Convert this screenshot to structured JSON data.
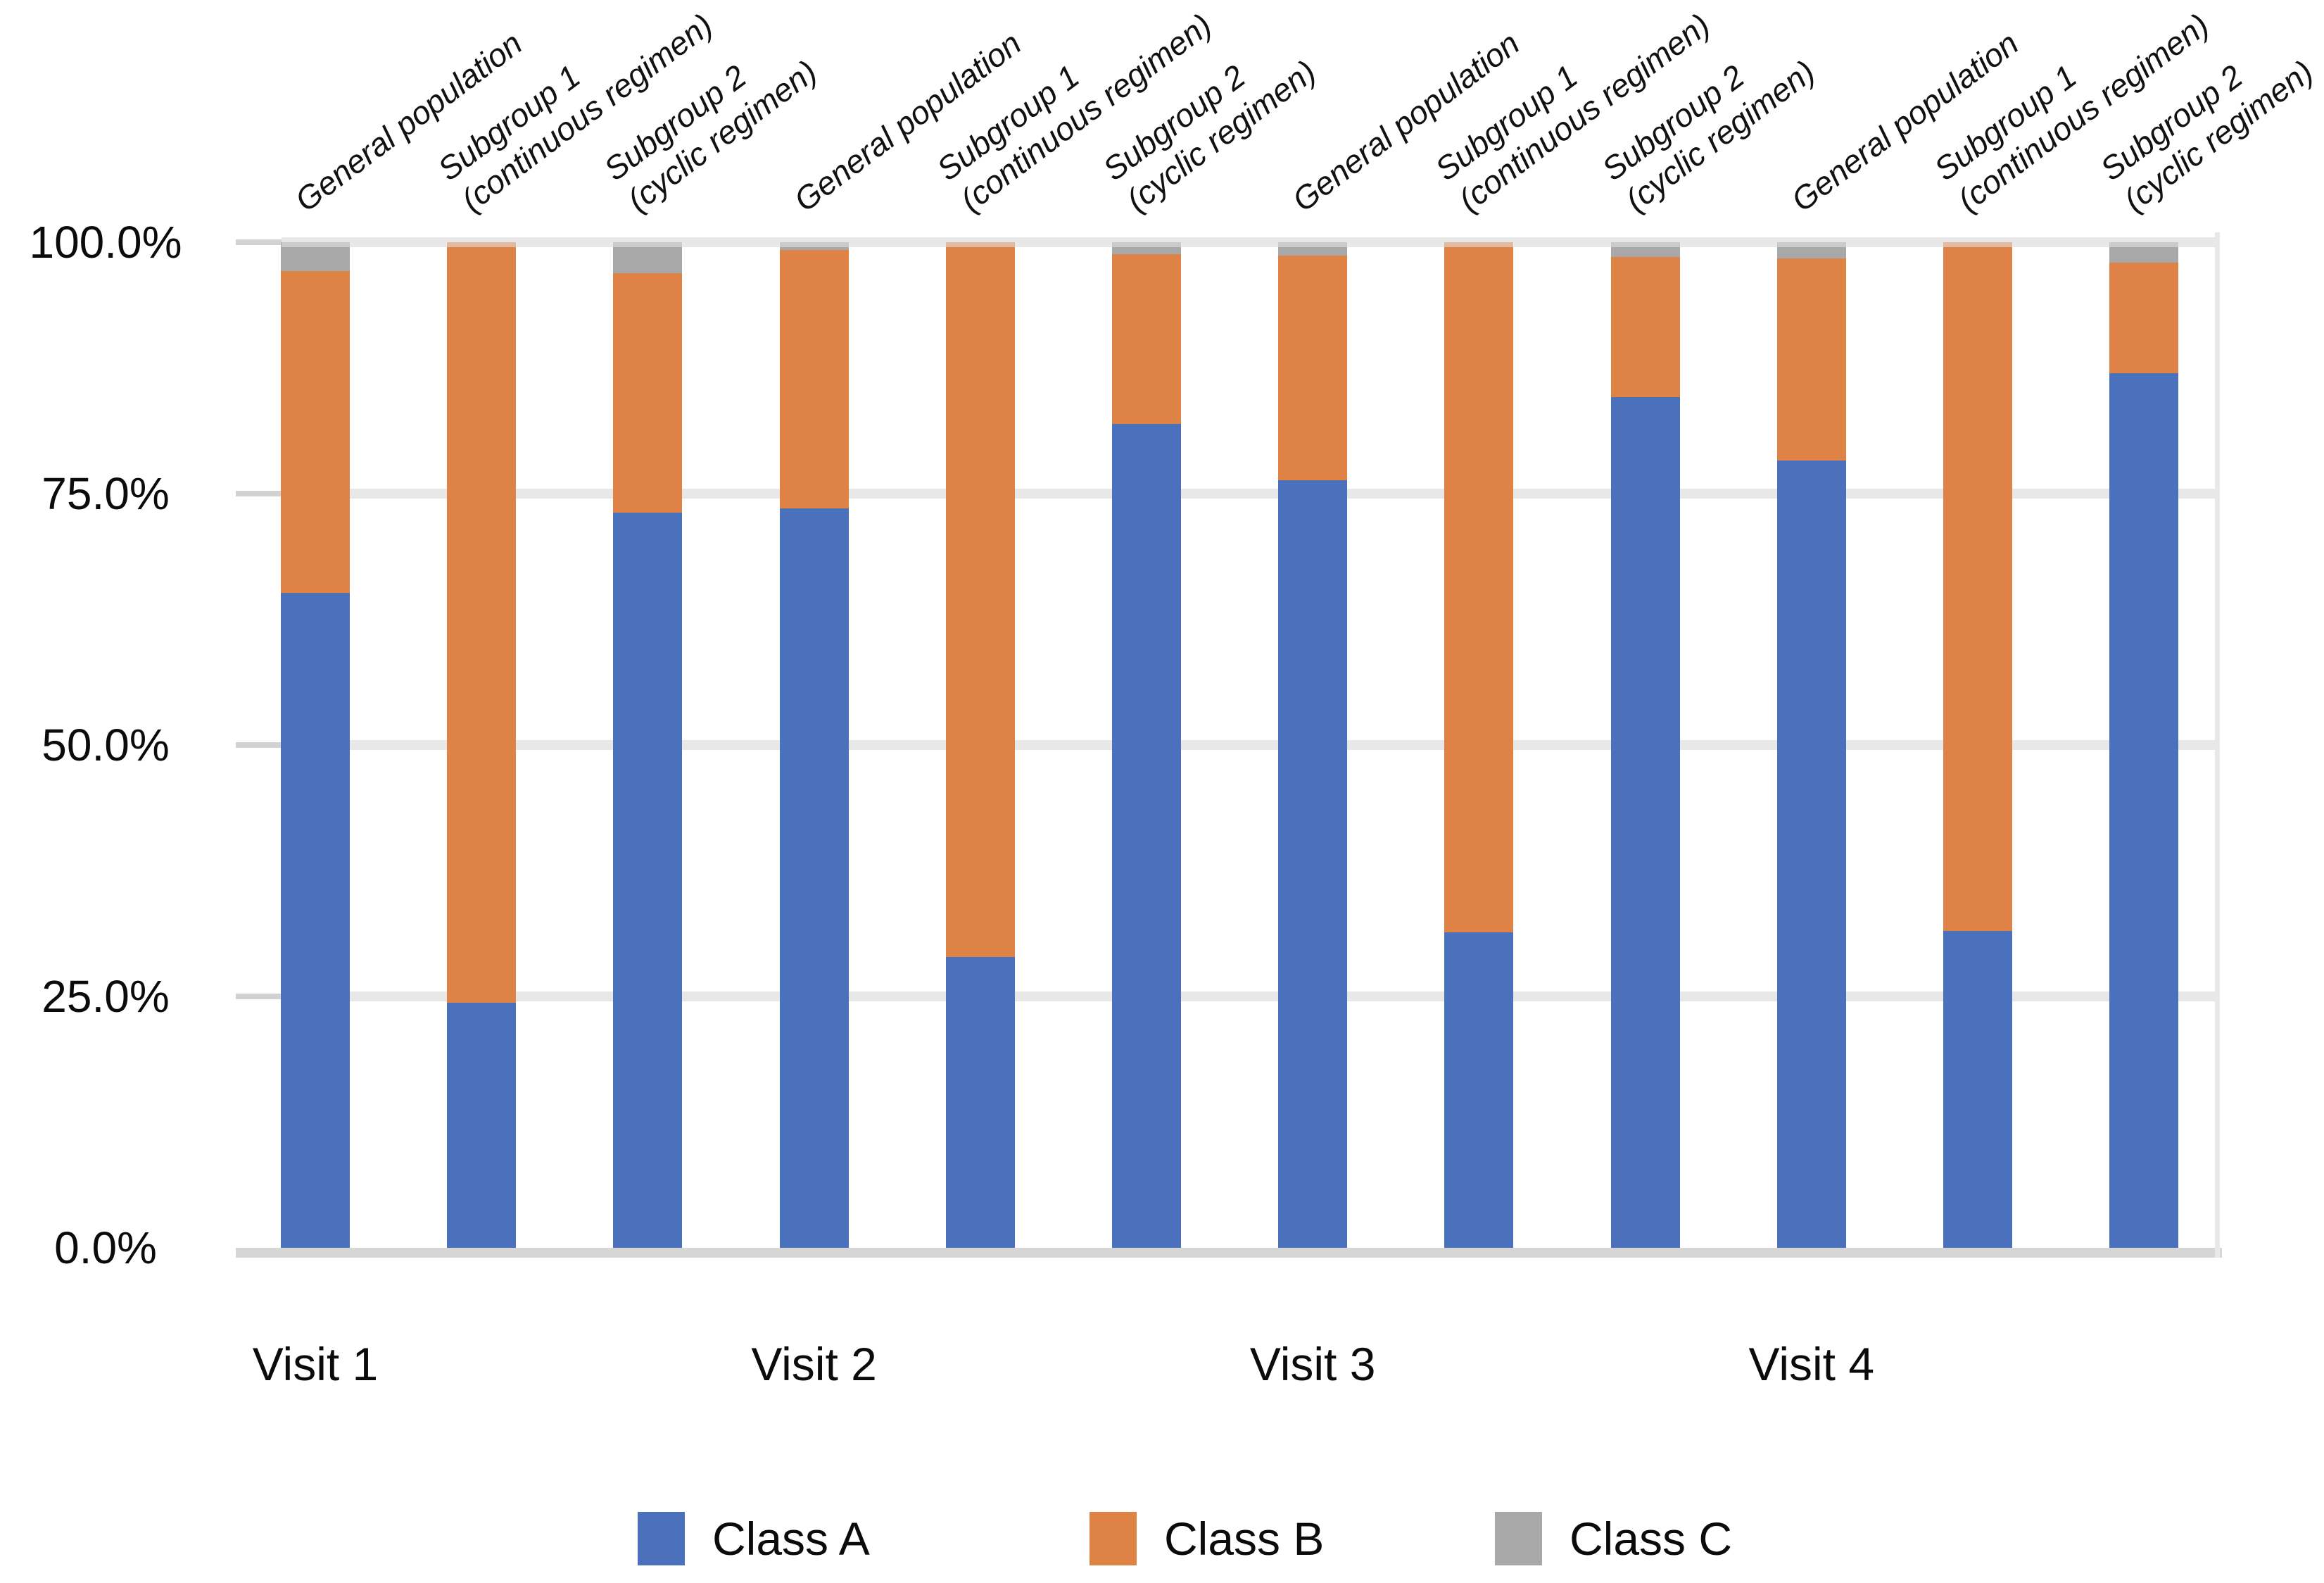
{
  "chart_data": {
    "type": "bar",
    "subtype": "stacked-100-percent",
    "title": "",
    "xlabel": "",
    "ylabel": "",
    "ylim": [
      0,
      100
    ],
    "grid": "horizontal",
    "legend_position": "bottom",
    "y_ticks": [
      {
        "label": "100.0%",
        "value": 100
      },
      {
        "label": "75.0%",
        "value": 75
      },
      {
        "label": "50.0%",
        "value": 50
      },
      {
        "label": "25.0%",
        "value": 25
      },
      {
        "label": "0.0%",
        "value": 0
      }
    ],
    "series": [
      {
        "name": "Class A",
        "color": "#4C71BC"
      },
      {
        "name": "Class B",
        "color": "#DE8345"
      },
      {
        "name": "Class C",
        "color": "#A8A8A8"
      }
    ],
    "group_labels": [
      "Visit 1",
      "Visit 2",
      "Visit 3",
      "Visit 4"
    ],
    "bars": [
      {
        "group": "Visit 1",
        "label_lines": [
          "General population"
        ],
        "values": [
          65.1,
          32.0,
          2.9
        ]
      },
      {
        "group": "Visit 1",
        "label_lines": [
          "Subgroup 1",
          "(continuous regimen)"
        ],
        "values": [
          24.4,
          75.6,
          0.0
        ]
      },
      {
        "group": "Visit 1",
        "label_lines": [
          "Subgroup 2",
          "(cyclic regimen)"
        ],
        "values": [
          73.1,
          23.8,
          3.1
        ]
      },
      {
        "group": "Visit 2",
        "label_lines": [
          "General population"
        ],
        "values": [
          73.5,
          25.7,
          0.8
        ]
      },
      {
        "group": "Visit 2",
        "label_lines": [
          "Subgroup 1",
          "(continuous regimen)"
        ],
        "values": [
          28.9,
          71.1,
          0.0
        ]
      },
      {
        "group": "Visit 2",
        "label_lines": [
          "Subgroup 2",
          "(cyclic regimen)"
        ],
        "values": [
          81.9,
          16.9,
          1.2
        ]
      },
      {
        "group": "Visit 3",
        "label_lines": [
          "General population"
        ],
        "values": [
          76.3,
          22.4,
          1.3
        ]
      },
      {
        "group": "Visit 3",
        "label_lines": [
          "Subgroup 1",
          "(continuous regimen)"
        ],
        "values": [
          31.4,
          68.6,
          0.0
        ]
      },
      {
        "group": "Visit 3",
        "label_lines": [
          "Subgroup 2",
          "(cyclic regimen)"
        ],
        "values": [
          84.6,
          13.9,
          1.5
        ]
      },
      {
        "group": "Visit 4",
        "label_lines": [
          "General population"
        ],
        "values": [
          78.3,
          20.1,
          1.6
        ]
      },
      {
        "group": "Visit 4",
        "label_lines": [
          "Subgroup 1",
          "(continuous regimen)"
        ],
        "values": [
          31.5,
          68.5,
          0.0
        ]
      },
      {
        "group": "Visit 4",
        "label_lines": [
          "Subgroup 2",
          "(cyclic regimen)"
        ],
        "values": [
          87.0,
          11.0,
          2.0
        ]
      }
    ],
    "colors": {
      "class_a": "#4C71BC",
      "class_b": "#DE8345",
      "class_c": "#A8A8A8",
      "gridline": "#E8E8E8",
      "baseline": "#D6D6D6",
      "text": "#0B0B0B"
    }
  }
}
